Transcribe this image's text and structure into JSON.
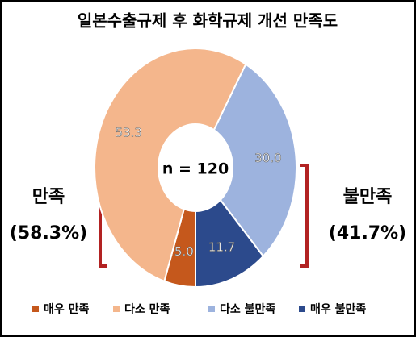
{
  "chart_data": {
    "type": "donut",
    "title": "일본수출규제 후 화학규제 개선 만족도",
    "categories": [
      "매우 만족",
      "다소 만족",
      "다소 불만족",
      "매우 불만족"
    ],
    "values": [
      5.0,
      53.3,
      30.0,
      11.7
    ],
    "value_labels": [
      "5.0",
      "53.3",
      "30.0",
      "11.7"
    ],
    "colors": [
      "#c5581c",
      "#f4b68c",
      "#9db3de",
      "#2c4a8c"
    ],
    "center_label": "n = 120",
    "annotations": [
      {
        "label": "만족",
        "value_text": "(58.3%)"
      },
      {
        "label": "불만족",
        "value_text": "(41.7%)"
      }
    ]
  }
}
